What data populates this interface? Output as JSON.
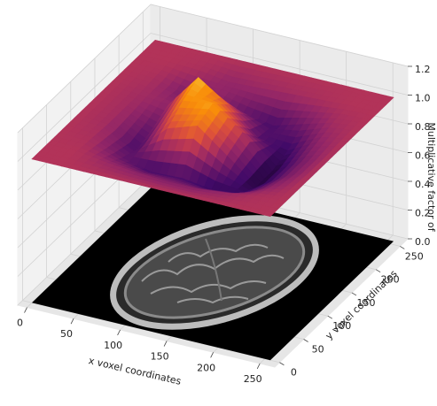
{
  "chart_data": {
    "type": "surface3d",
    "xlabel": "x voxel coordinates",
    "ylabel": "y voxel coordinates",
    "zlabel": "Multiplicative factor of",
    "colormap": "inferno",
    "x": [
      0,
      32,
      64,
      96,
      128,
      160,
      192,
      224,
      256
    ],
    "y": [
      0,
      32,
      64,
      96,
      128,
      160,
      192,
      224,
      256
    ],
    "z": [
      [
        1.0,
        1.0,
        1.0,
        1.0,
        1.0,
        1.0,
        1.0,
        1.0,
        1.0
      ],
      [
        1.0,
        1.0,
        0.99,
        0.98,
        0.98,
        0.98,
        0.99,
        1.0,
        1.0
      ],
      [
        1.0,
        0.97,
        0.9,
        0.86,
        0.9,
        0.96,
        0.93,
        0.99,
        1.0
      ],
      [
        1.0,
        0.95,
        0.85,
        1.05,
        1.14,
        1.2,
        0.96,
        0.96,
        1.0
      ],
      [
        1.0,
        0.94,
        0.86,
        1.12,
        1.17,
        1.06,
        0.9,
        0.97,
        1.0
      ],
      [
        1.0,
        0.94,
        0.83,
        0.96,
        1.02,
        0.88,
        0.86,
        0.98,
        1.0
      ],
      [
        1.0,
        0.96,
        0.85,
        0.8,
        0.8,
        0.84,
        0.92,
        0.99,
        1.0
      ],
      [
        1.0,
        0.99,
        0.95,
        0.92,
        0.92,
        0.95,
        0.98,
        1.0,
        1.0
      ],
      [
        1.0,
        1.0,
        1.0,
        1.0,
        1.0,
        1.0,
        1.0,
        1.0,
        1.0
      ]
    ],
    "xlim": [
      -10,
      266
    ],
    "ylim": [
      -10,
      266
    ],
    "zlim": [
      0,
      1.2
    ],
    "xticks": [
      0,
      50,
      100,
      150,
      200,
      250
    ],
    "yticks": [
      0,
      50,
      100,
      150,
      200,
      250
    ],
    "zticks": [
      {
        "value": 0,
        "label": "0.0"
      },
      {
        "value": 0.2,
        "label": "0.2"
      },
      {
        "value": 0.4,
        "label": "0.4"
      },
      {
        "value": 0.6,
        "label": "0.6"
      },
      {
        "value": 0.8,
        "label": "0.8"
      },
      {
        "value": 1.0,
        "label": "1.0"
      },
      {
        "value": 1.2,
        "label": "1.2"
      }
    ],
    "grid": true
  }
}
